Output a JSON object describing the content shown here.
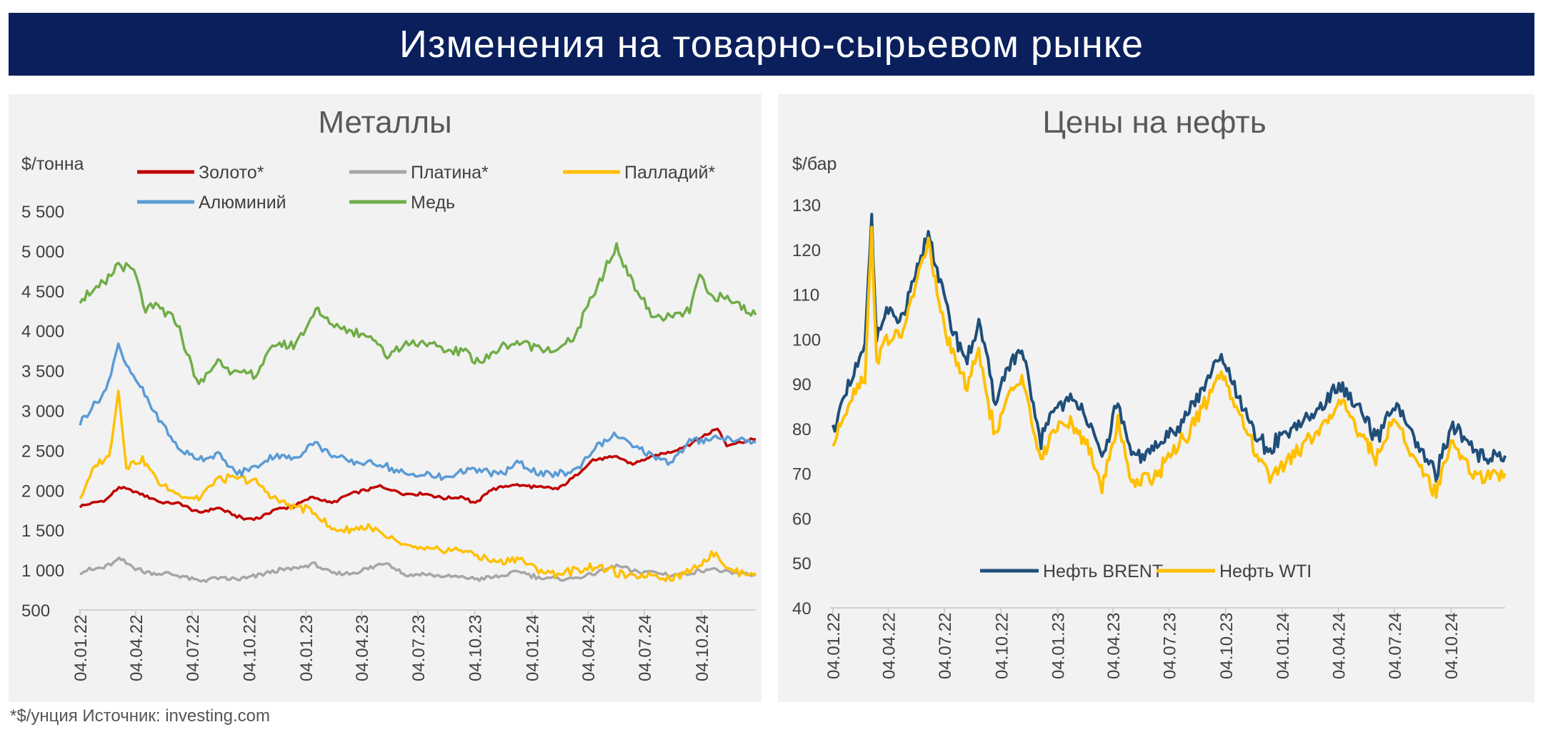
{
  "banner": {
    "title": "Изменения на товарно-сырьевом рынке"
  },
  "footnote": "*$/унция  Источник: investing.com",
  "chart_data": [
    {
      "type": "line",
      "title": "Металлы",
      "ylabel": "$/тонна",
      "ylim": [
        500,
        5500
      ],
      "yticks": [
        500,
        1000,
        1500,
        2000,
        2500,
        3000,
        3500,
        4000,
        4500,
        5000,
        5500
      ],
      "ytick_labels": [
        "500",
        "1 000",
        "1 500",
        "2 000",
        "2 500",
        "3 000",
        "3 500",
        "4 000",
        "4 500",
        "5 000",
        "5 500"
      ],
      "xlim": [
        "2022-01-04",
        "2024-12-31"
      ],
      "xtick_labels": [
        "04.01.22",
        "04.04.22",
        "04.07.22",
        "04.10.22",
        "04.01.23",
        "04.04.23",
        "04.07.23",
        "04.10.23",
        "04.01.24",
        "04.04.24",
        "04.07.24",
        "04.10.24"
      ],
      "xtick_dates": [
        "2022-01-04",
        "2022-04-04",
        "2022-07-04",
        "2022-10-04",
        "2023-01-04",
        "2023-04-04",
        "2023-07-04",
        "2023-10-04",
        "2024-01-04",
        "2024-04-04",
        "2024-07-04",
        "2024-10-04"
      ],
      "grid": false,
      "legend": "top",
      "series": [
        {
          "name": "Золото*",
          "color": "#c00000",
          "x": [
            "2022-01-04",
            "2022-02-15",
            "2022-03-08",
            "2022-04-15",
            "2022-05-15",
            "2022-06-15",
            "2022-07-15",
            "2022-08-15",
            "2022-09-26",
            "2022-10-20",
            "2022-11-15",
            "2022-12-15",
            "2023-01-15",
            "2023-02-15",
            "2023-03-15",
            "2023-04-15",
            "2023-05-04",
            "2023-06-15",
            "2023-07-15",
            "2023-08-15",
            "2023-09-15",
            "2023-10-05",
            "2023-10-27",
            "2023-12-04",
            "2024-01-15",
            "2024-02-15",
            "2024-03-10",
            "2024-04-12",
            "2024-05-20",
            "2024-06-15",
            "2024-07-15",
            "2024-08-15",
            "2024-09-15",
            "2024-10-30",
            "2024-11-14",
            "2024-12-31"
          ],
          "values": [
            1800,
            1880,
            2040,
            1950,
            1850,
            1830,
            1720,
            1780,
            1640,
            1650,
            1760,
            1800,
            1920,
            1840,
            1950,
            2010,
            2050,
            1950,
            1960,
            1900,
            1920,
            1830,
            2000,
            2070,
            2040,
            2020,
            2150,
            2380,
            2420,
            2330,
            2420,
            2480,
            2580,
            2780,
            2570,
            2640
          ]
        },
        {
          "name": "Платина*",
          "color": "#a6a6a6",
          "x": [
            "2022-01-04",
            "2022-02-15",
            "2022-03-08",
            "2022-04-15",
            "2022-05-15",
            "2022-06-15",
            "2022-07-15",
            "2022-08-15",
            "2022-09-15",
            "2022-10-15",
            "2022-11-15",
            "2022-12-15",
            "2023-01-15",
            "2023-02-15",
            "2023-03-15",
            "2023-04-15",
            "2023-05-15",
            "2023-06-15",
            "2023-07-15",
            "2023-08-15",
            "2023-09-15",
            "2023-10-15",
            "2023-11-15",
            "2023-12-15",
            "2024-01-15",
            "2024-02-15",
            "2024-03-15",
            "2024-04-15",
            "2024-05-20",
            "2024-06-15",
            "2024-07-15",
            "2024-08-15",
            "2024-09-15",
            "2024-10-20",
            "2024-11-15",
            "2024-12-31"
          ],
          "values": [
            980,
            1040,
            1140,
            980,
            960,
            930,
            870,
            900,
            880,
            920,
            990,
            1020,
            1080,
            960,
            960,
            1020,
            1100,
            930,
            950,
            920,
            910,
            890,
            920,
            980,
            910,
            890,
            900,
            960,
            1060,
            980,
            980,
            940,
            960,
            1020,
            960,
            940
          ]
        },
        {
          "name": "Палладий*",
          "color": "#ffc000",
          "x": [
            "2022-01-04",
            "2022-02-01",
            "2022-02-20",
            "2022-03-07",
            "2022-03-20",
            "2022-04-15",
            "2022-05-15",
            "2022-06-15",
            "2022-07-15",
            "2022-08-15",
            "2022-09-15",
            "2022-10-15",
            "2022-11-15",
            "2022-12-15",
            "2023-01-15",
            "2023-02-15",
            "2023-03-15",
            "2023-04-15",
            "2023-05-15",
            "2023-06-15",
            "2023-07-15",
            "2023-08-15",
            "2023-09-15",
            "2023-10-15",
            "2023-11-15",
            "2023-12-15",
            "2024-01-15",
            "2024-02-15",
            "2024-03-15",
            "2024-04-15",
            "2024-05-15",
            "2024-06-15",
            "2024-07-15",
            "2024-08-15",
            "2024-09-15",
            "2024-10-28",
            "2024-11-15",
            "2024-12-31"
          ],
          "values": [
            1900,
            2350,
            2400,
            3250,
            2300,
            2400,
            2050,
            1950,
            1900,
            2150,
            2150,
            2100,
            1900,
            1800,
            1750,
            1500,
            1500,
            1550,
            1400,
            1300,
            1250,
            1250,
            1250,
            1150,
            1100,
            1150,
            1000,
            950,
            1000,
            1050,
            980,
            900,
            950,
            900,
            980,
            1230,
            1000,
            960
          ]
        },
        {
          "name": "Алюминий",
          "color": "#5b9bd5",
          "x": [
            "2022-01-04",
            "2022-02-15",
            "2022-03-07",
            "2022-03-20",
            "2022-04-15",
            "2022-05-15",
            "2022-06-15",
            "2022-07-15",
            "2022-08-15",
            "2022-09-15",
            "2022-10-15",
            "2022-11-15",
            "2022-12-15",
            "2023-01-15",
            "2023-02-15",
            "2023-03-15",
            "2023-04-15",
            "2023-05-15",
            "2023-06-15",
            "2023-07-15",
            "2023-08-15",
            "2023-09-15",
            "2023-10-15",
            "2023-11-15",
            "2023-12-15",
            "2024-01-15",
            "2024-02-15",
            "2024-03-15",
            "2024-04-15",
            "2024-05-20",
            "2024-06-15",
            "2024-07-15",
            "2024-08-15",
            "2024-09-15",
            "2024-10-15",
            "2024-11-15",
            "2024-12-31"
          ],
          "values": [
            2850,
            3250,
            3850,
            3550,
            3250,
            2850,
            2500,
            2400,
            2450,
            2200,
            2300,
            2450,
            2380,
            2600,
            2450,
            2350,
            2350,
            2300,
            2200,
            2200,
            2150,
            2250,
            2250,
            2200,
            2350,
            2200,
            2200,
            2250,
            2550,
            2700,
            2550,
            2450,
            2350,
            2600,
            2650,
            2650,
            2600
          ]
        },
        {
          "name": "Медь",
          "color": "#70ad47",
          "x": [
            "2022-01-04",
            "2022-02-15",
            "2022-03-07",
            "2022-04-01",
            "2022-04-20",
            "2022-05-10",
            "2022-06-10",
            "2022-07-15",
            "2022-08-15",
            "2022-09-15",
            "2022-10-15",
            "2022-11-15",
            "2022-12-15",
            "2023-01-20",
            "2023-02-15",
            "2023-03-15",
            "2023-04-15",
            "2023-05-15",
            "2023-06-15",
            "2023-07-15",
            "2023-08-15",
            "2023-09-15",
            "2023-10-15",
            "2023-11-15",
            "2023-12-15",
            "2024-01-15",
            "2024-02-15",
            "2024-03-15",
            "2024-04-15",
            "2024-05-20",
            "2024-06-15",
            "2024-07-15",
            "2024-08-15",
            "2024-09-15",
            "2024-10-01",
            "2024-10-15",
            "2024-11-15",
            "2024-12-31"
          ],
          "values": [
            4400,
            4600,
            4850,
            4750,
            4250,
            4300,
            4100,
            3300,
            3650,
            3450,
            3450,
            3850,
            3800,
            4250,
            4100,
            4000,
            3950,
            3700,
            3850,
            3850,
            3750,
            3750,
            3600,
            3800,
            3850,
            3800,
            3750,
            3950,
            4500,
            5050,
            4600,
            4200,
            4150,
            4250,
            4700,
            4450,
            4400,
            4200
          ]
        }
      ]
    },
    {
      "type": "line",
      "title": "Цены на нефть",
      "ylabel": "$/бар",
      "ylim": [
        40,
        130
      ],
      "yticks": [
        40,
        50,
        60,
        70,
        80,
        90,
        100,
        110,
        120,
        130
      ],
      "ytick_labels": [
        "40",
        "50",
        "60",
        "70",
        "80",
        "90",
        "100",
        "110",
        "120",
        "130"
      ],
      "xlim": [
        "2022-01-04",
        "2024-12-31"
      ],
      "xtick_labels": [
        "04.01.22",
        "04.04.22",
        "04.07.22",
        "04.10.22",
        "04.01.23",
        "04.04.23",
        "04.07.23",
        "04.10.23",
        "04.01.24",
        "04.04.24",
        "04.07.24",
        "04.10.24"
      ],
      "xtick_dates": [
        "2022-01-04",
        "2022-04-04",
        "2022-07-04",
        "2022-10-04",
        "2023-01-04",
        "2023-04-04",
        "2023-07-04",
        "2023-10-04",
        "2024-01-04",
        "2024-04-04",
        "2024-07-04",
        "2024-10-04"
      ],
      "grid": false,
      "legend": "bottom",
      "series": [
        {
          "name": "Нефть BRENT",
          "color": "#1f4e79",
          "x": [
            "2022-01-04",
            "2022-02-01",
            "2022-02-25",
            "2022-03-08",
            "2022-03-16",
            "2022-04-01",
            "2022-04-25",
            "2022-05-15",
            "2022-06-08",
            "2022-06-25",
            "2022-07-15",
            "2022-08-10",
            "2022-08-29",
            "2022-09-25",
            "2022-10-15",
            "2022-11-07",
            "2022-12-08",
            "2022-12-28",
            "2023-01-25",
            "2023-02-15",
            "2023-03-17",
            "2023-04-12",
            "2023-05-04",
            "2023-06-15",
            "2023-07-15",
            "2023-08-15",
            "2023-09-27",
            "2023-10-15",
            "2023-11-15",
            "2023-12-12",
            "2024-01-15",
            "2024-02-15",
            "2024-03-15",
            "2024-04-05",
            "2024-05-15",
            "2024-06-04",
            "2024-07-05",
            "2024-08-05",
            "2024-09-10",
            "2024-10-07",
            "2024-11-15",
            "2024-12-31"
          ],
          "values": [
            80,
            90,
            98,
            128,
            100,
            106,
            104,
            112,
            124,
            114,
            103,
            95,
            104,
            86,
            94,
            97,
            77,
            85,
            86,
            85,
            73,
            86,
            73,
            76,
            80,
            86,
            96,
            90,
            80,
            75,
            80,
            82,
            86,
            90,
            83,
            77,
            86,
            77,
            70,
            81,
            74,
            74
          ]
        },
        {
          "name": "Нефть WTI",
          "color": "#ffc000",
          "x": [
            "2022-01-04",
            "2022-02-01",
            "2022-02-25",
            "2022-03-08",
            "2022-03-16",
            "2022-04-01",
            "2022-04-25",
            "2022-05-15",
            "2022-06-08",
            "2022-06-25",
            "2022-07-15",
            "2022-08-10",
            "2022-08-29",
            "2022-09-25",
            "2022-10-15",
            "2022-11-07",
            "2022-12-08",
            "2022-12-28",
            "2023-01-25",
            "2023-02-15",
            "2023-03-17",
            "2023-04-12",
            "2023-05-04",
            "2023-06-15",
            "2023-07-15",
            "2023-08-15",
            "2023-09-27",
            "2023-10-15",
            "2023-11-15",
            "2023-12-12",
            "2024-01-15",
            "2024-02-15",
            "2024-03-15",
            "2024-04-05",
            "2024-05-15",
            "2024-06-04",
            "2024-07-05",
            "2024-08-05",
            "2024-09-10",
            "2024-10-07",
            "2024-11-15",
            "2024-12-31"
          ],
          "values": [
            76,
            87,
            92,
            124,
            95,
            100,
            101,
            110,
            122,
            108,
            97,
            90,
            97,
            78,
            87,
            92,
            72,
            80,
            81,
            78,
            67,
            82,
            68,
            70,
            76,
            81,
            93,
            87,
            77,
            69,
            73,
            77,
            81,
            87,
            78,
            73,
            83,
            73,
            66,
            77,
            69,
            70
          ]
        }
      ]
    }
  ]
}
